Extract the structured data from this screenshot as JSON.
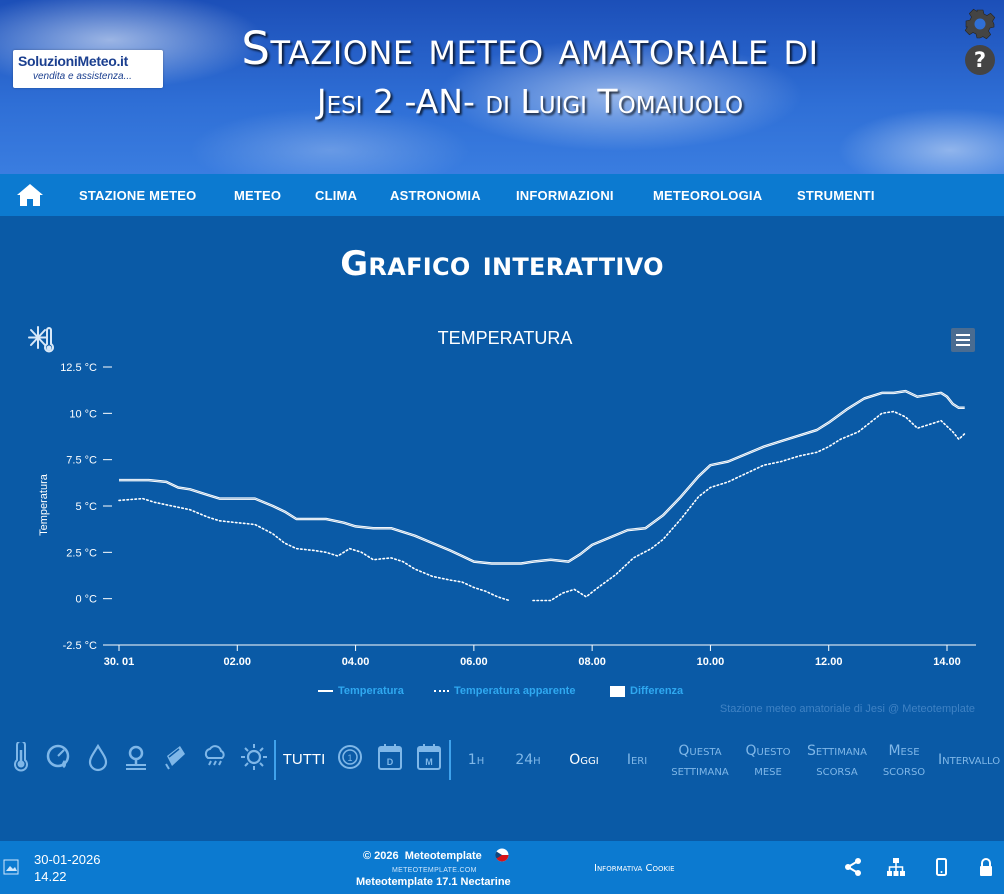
{
  "header": {
    "logo_line1": "SoluzioniMeteo.it",
    "logo_line2": "vendita e assistenza...",
    "title_line1": "Stazione meteo amatoriale di",
    "title_line2": "Jesi 2 -AN- di Luigi Tomaiuolo",
    "icons": [
      "settings-gear-icon",
      "help-icon"
    ]
  },
  "nav": {
    "home_icon": "home-icon",
    "items": [
      "STAZIONE METEO",
      "METEO",
      "CLIMA",
      "ASTRONOMIA",
      "INFORMAZIONI",
      "METEOROLOGIA",
      "STRUMENTI"
    ]
  },
  "main": {
    "page_title": "Grafico interattivo",
    "chart_icon": "thermometer-snowflake-icon",
    "menu_icon": "hamburger-menu-icon"
  },
  "chart_data": {
    "type": "line",
    "title": "TEMPERATURA",
    "ylabel": "Temperatura",
    "xlabel": "",
    "y_unit": "°C",
    "ylim": [
      -2.5,
      12.5
    ],
    "yticks": [
      "12.5 °C",
      "10 °C",
      "7.5 °C",
      "5 °C",
      "2.5 °C",
      "0 °C",
      "-2.5 °C"
    ],
    "ytick_values": [
      12.5,
      10,
      7.5,
      5,
      2.5,
      0,
      -2.5
    ],
    "xticks": [
      "30. 01",
      "02.00",
      "04.00",
      "06.00",
      "08.00",
      "10.00",
      "12.00",
      "14.00"
    ],
    "xtick_values": [
      0,
      2,
      4,
      6,
      8,
      10,
      12,
      14
    ],
    "xlim": [
      0,
      14.3
    ],
    "series": [
      {
        "name": "Temperatura",
        "style": "solid",
        "color": "#ffffff",
        "x": [
          0,
          0.5,
          0.8,
          1.0,
          1.2,
          1.5,
          1.7,
          2.0,
          2.3,
          2.6,
          2.8,
          3.0,
          3.3,
          3.5,
          3.8,
          4.0,
          4.3,
          4.6,
          4.8,
          5.0,
          5.3,
          5.6,
          5.8,
          6.0,
          6.3,
          6.6,
          6.8,
          7.0,
          7.3,
          7.6,
          7.8,
          8.0,
          8.3,
          8.6,
          8.9,
          9.2,
          9.5,
          9.8,
          10.0,
          10.3,
          10.6,
          10.9,
          11.2,
          11.5,
          11.8,
          12.0,
          12.3,
          12.6,
          12.9,
          13.1,
          13.3,
          13.5,
          13.7,
          13.9,
          14.0,
          14.1,
          14.2,
          14.3
        ],
        "y": [
          6.4,
          6.4,
          6.3,
          6.0,
          5.9,
          5.6,
          5.4,
          5.4,
          5.4,
          5.0,
          4.7,
          4.3,
          4.3,
          4.3,
          4.1,
          3.9,
          3.8,
          3.8,
          3.6,
          3.4,
          3.0,
          2.6,
          2.3,
          2.0,
          1.9,
          1.9,
          1.9,
          2.0,
          2.1,
          2.0,
          2.4,
          2.9,
          3.3,
          3.7,
          3.8,
          4.5,
          5.5,
          6.6,
          7.2,
          7.4,
          7.8,
          8.2,
          8.5,
          8.8,
          9.1,
          9.5,
          10.2,
          10.8,
          11.1,
          11.1,
          11.2,
          10.9,
          11.0,
          11.1,
          10.9,
          10.5,
          10.3,
          10.3
        ]
      },
      {
        "name": "Temperatura apparente",
        "style": "dotted",
        "color": "#ffffff",
        "x": [
          0,
          0.4,
          0.6,
          0.9,
          1.2,
          1.5,
          1.7,
          2.0,
          2.3,
          2.6,
          2.8,
          3.0,
          3.3,
          3.5,
          3.7,
          3.9,
          4.1,
          4.3,
          4.6,
          4.8,
          5.0,
          5.3,
          5.6,
          5.8,
          6.0,
          6.2,
          6.4,
          6.6,
          6.8,
          7.0,
          7.3,
          7.5,
          7.7,
          7.9,
          8.1,
          8.4,
          8.7,
          9.0,
          9.2,
          9.5,
          9.8,
          10.0,
          10.3,
          10.5,
          10.7,
          10.9,
          11.2,
          11.5,
          11.8,
          12.0,
          12.2,
          12.5,
          12.7,
          12.9,
          13.1,
          13.3,
          13.5,
          13.7,
          13.9,
          14.1,
          14.2,
          14.3
        ],
        "y": [
          5.3,
          5.4,
          5.2,
          5.0,
          4.8,
          4.4,
          4.2,
          4.1,
          4.0,
          3.5,
          3.0,
          2.7,
          2.6,
          2.5,
          2.3,
          2.7,
          2.5,
          2.1,
          2.2,
          2.0,
          1.6,
          1.2,
          1.0,
          0.9,
          0.6,
          0.4,
          0.1,
          -0.1,
          null,
          -0.1,
          -0.1,
          0.3,
          0.5,
          0.1,
          0.6,
          1.3,
          2.2,
          2.7,
          3.2,
          4.3,
          5.5,
          6.0,
          6.3,
          6.6,
          6.9,
          7.2,
          7.4,
          7.7,
          7.9,
          8.2,
          8.6,
          9.0,
          9.5,
          10.0,
          10.1,
          9.8,
          9.2,
          9.4,
          9.6,
          9.0,
          8.6,
          8.9
        ]
      }
    ],
    "difference_series": {
      "name": "Differenza",
      "color": "#ffffff"
    },
    "legend_position": "bottom-center",
    "grid": false,
    "credits": "Stazione meteo amatoriale di Jesi @ Meteotemplate"
  },
  "toolbar": {
    "icons": [
      "thermometer-icon",
      "pressure-gauge-icon",
      "humidity-drop-icon",
      "wind-icon",
      "rain-icon",
      "storm-icon",
      "sun-icon"
    ],
    "all_label": "TUTTI",
    "period_icons": [
      "clock-1-icon",
      "calendar-day-icon",
      "calendar-month-icon"
    ],
    "periods": [
      {
        "line1": "1h",
        "line2": ""
      },
      {
        "line1": "24h",
        "line2": ""
      },
      {
        "line1": "Oggi",
        "line2": ""
      },
      {
        "line1": "Ieri",
        "line2": ""
      },
      {
        "line1": "Questa",
        "line2": "settimana"
      },
      {
        "line1": "Questo",
        "line2": "mese"
      },
      {
        "line1": "Settimana",
        "line2": "scorsa"
      },
      {
        "line1": "Mese",
        "line2": "scorso"
      },
      {
        "line1": "Intervallo",
        "line2": ""
      }
    ]
  },
  "footer": {
    "date": "30-01-2026",
    "time": "14.22",
    "copyright": "© 2026",
    "brand": "Meteotemplate",
    "site": "METEOTEMPLATE.COM",
    "version": "Meteotemplate 17.1 Nectarine",
    "cookie": "Informativa Cookie",
    "icons": [
      "share-icon",
      "sitemap-icon",
      "mobile-icon",
      "lock-icon"
    ]
  }
}
